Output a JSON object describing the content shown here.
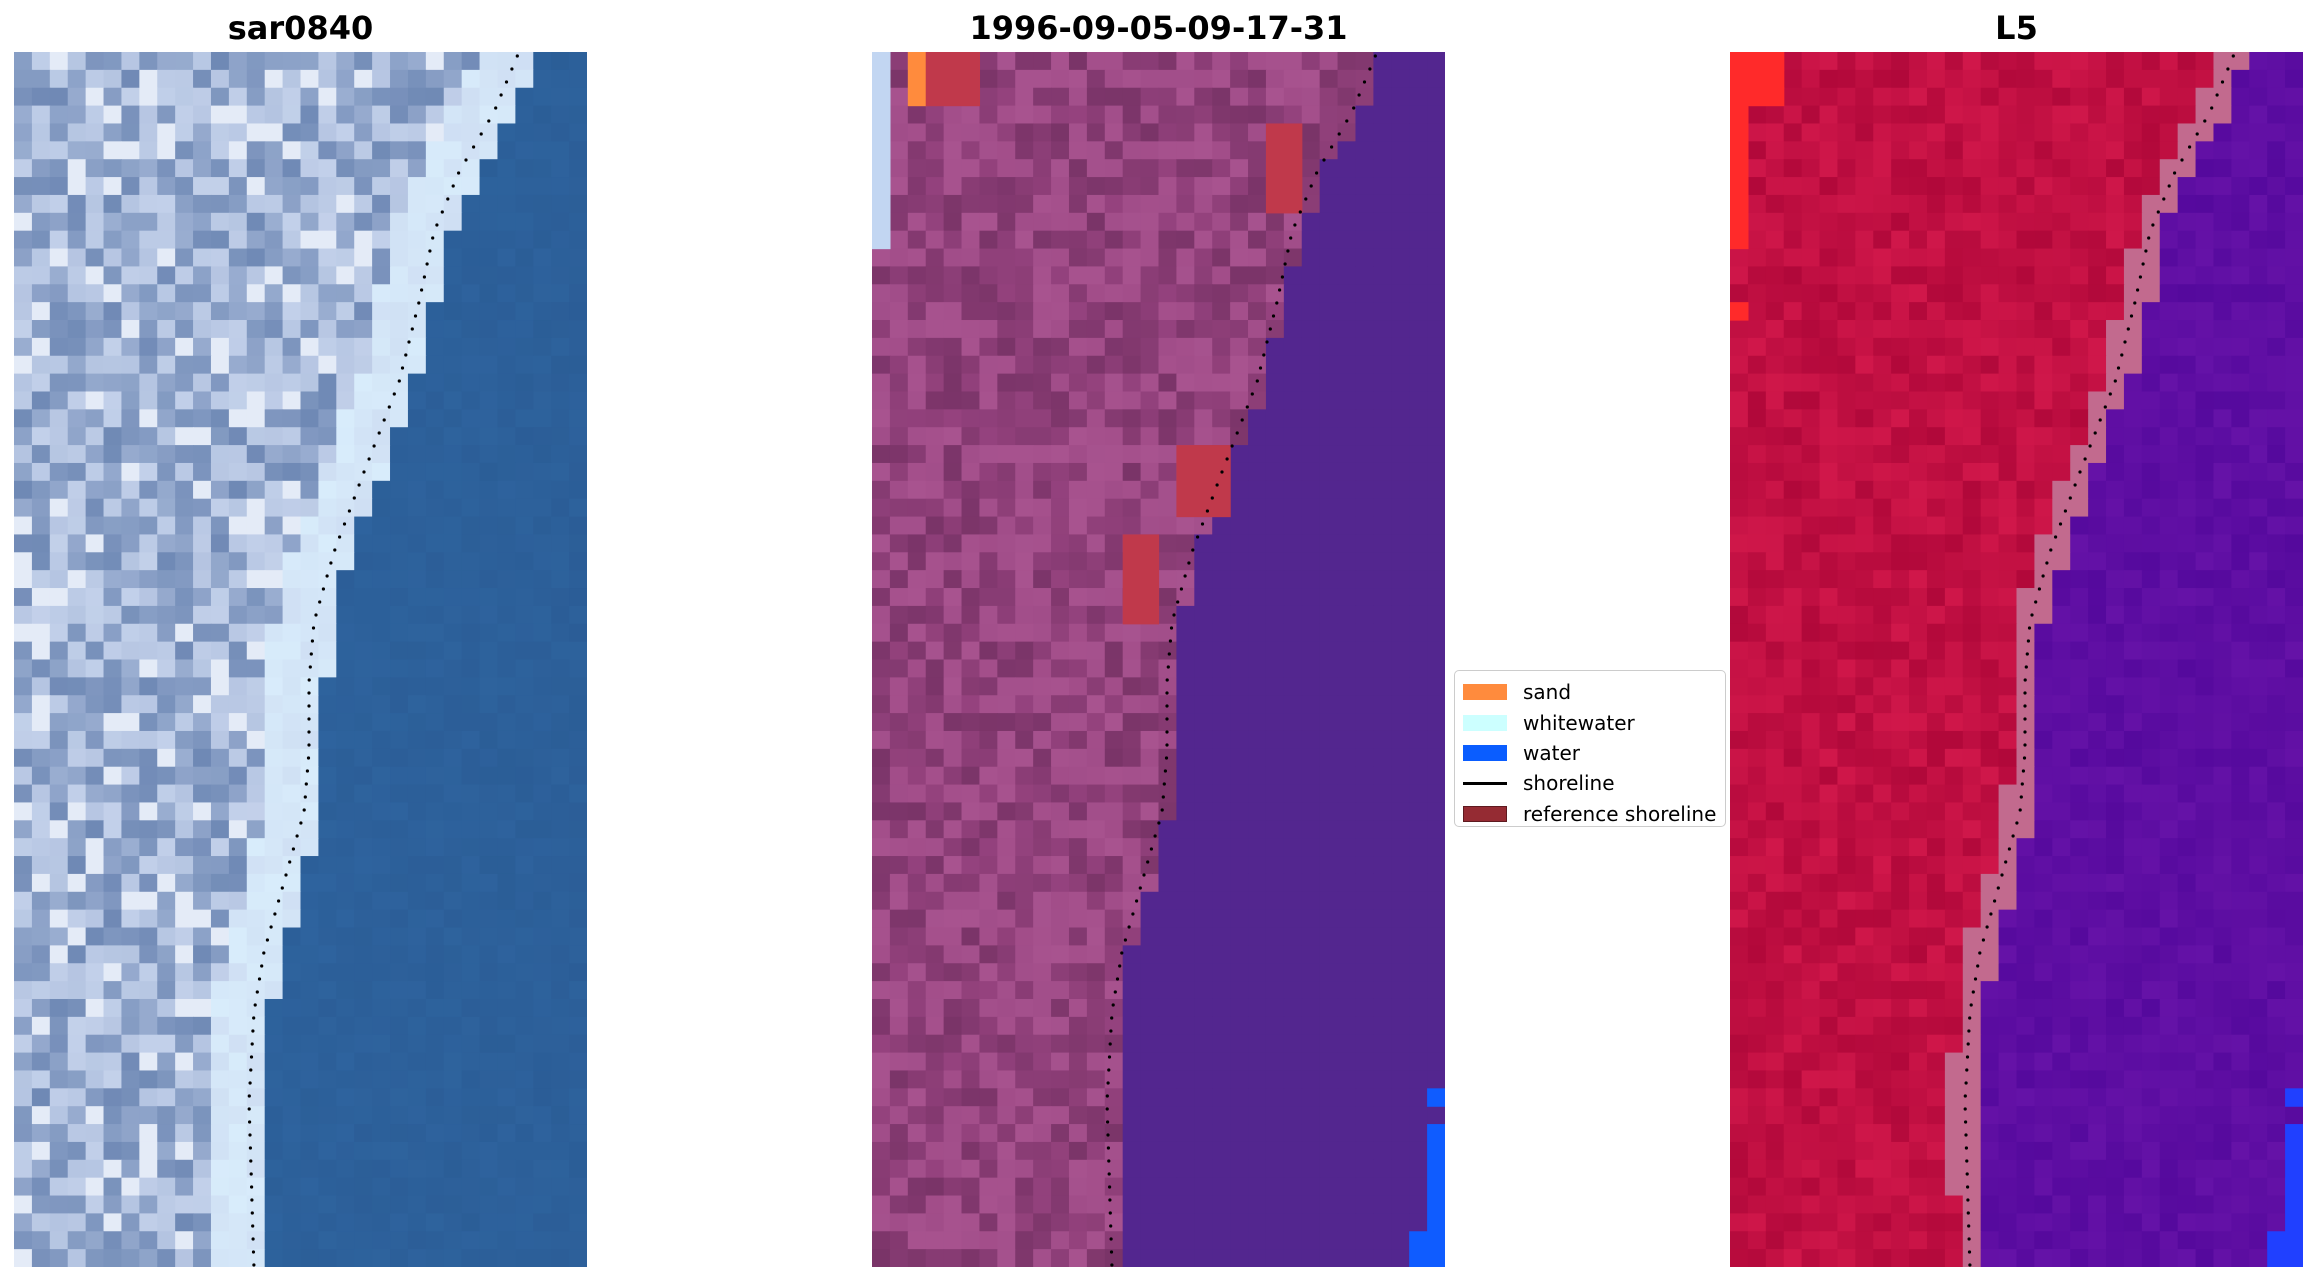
{
  "panels": [
    {
      "title": "sar0840",
      "style": "rgb",
      "colors": {
        "land_light": "#c9d6ee",
        "land_mid": "#9fb2d4",
        "land_dark": "#6f89b5",
        "surf": "#d8ecfb",
        "water": "#2f65a0",
        "water_dark": "#2a5b94"
      }
    },
    {
      "title": "1996-09-05-09-17-31",
      "style": "classified",
      "colors": {
        "land_light": "#a8538f",
        "land_mid": "#96437f",
        "land_dark": "#7a3468",
        "water_class": "#53268f",
        "sand_class": "#ff8b3d",
        "reference": "#c0394b",
        "water_blue": "#0f5cff",
        "pale_blue": "#c2d6f2"
      }
    },
    {
      "title": "L5",
      "style": "index",
      "colors": {
        "land_light": "#d0174a",
        "land_mid": "#c10f3d",
        "land_dark": "#b1083a",
        "transition": "#c26a8e",
        "water": "#6512a7",
        "water_dark": "#55099d",
        "hot": "#ff2a2a",
        "blue": "#2040ff"
      }
    }
  ],
  "legend": {
    "items": [
      {
        "label": "sand",
        "color": "#ff8b3d",
        "kind": "patch"
      },
      {
        "label": "whitewater",
        "color": "#ccffff",
        "kind": "patch"
      },
      {
        "label": "water",
        "color": "#0a5dff",
        "kind": "patch"
      },
      {
        "label": "shoreline",
        "color": "#000000",
        "kind": "line"
      },
      {
        "label": "reference shoreline",
        "color": "#952b33",
        "kind": "patch"
      }
    ]
  }
}
